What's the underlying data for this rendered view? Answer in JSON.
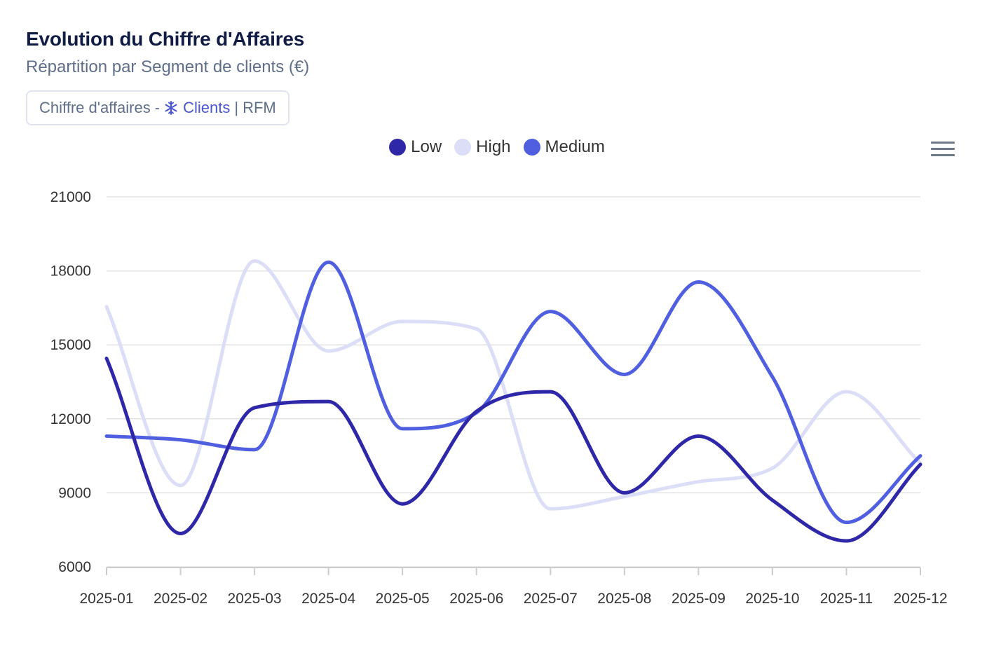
{
  "header": {
    "title": "Evolution du Chiffre d'Affaires",
    "subtitle": "Répartition par Segment de clients (€)"
  },
  "filter_chip": {
    "prefix": "Chiffre d'affaires -",
    "clients_label": "Clients",
    "separator": "|",
    "rfm_label": "RFM",
    "icon": "snowflake-icon"
  },
  "menu": {
    "icon": "hamburger-menu-icon"
  },
  "colors": {
    "title": "#111c44",
    "subtitle": "#5f6f8a",
    "accent": "#4b56d2",
    "grid": "#e3e3e3",
    "axis": "#cccccc"
  },
  "chart_data": {
    "type": "line",
    "title": "Evolution du Chiffre d'Affaires",
    "subtitle": "Répartition par Segment de clients (€)",
    "xlabel": "",
    "ylabel": "",
    "ylim": [
      6000,
      21000
    ],
    "yticks": [
      6000,
      9000,
      12000,
      15000,
      18000,
      21000
    ],
    "grid": true,
    "legend_position": "top-center",
    "categories": [
      "2025-01",
      "2025-02",
      "2025-03",
      "2025-04",
      "2025-05",
      "2025-06",
      "2025-07",
      "2025-08",
      "2025-09",
      "2025-10",
      "2025-11",
      "2025-12"
    ],
    "series": [
      {
        "name": "Low",
        "color": "#2e28a8",
        "values": [
          14450,
          7350,
          12450,
          12700,
          8550,
          12300,
          13100,
          9000,
          11300,
          8700,
          7050,
          10150
        ]
      },
      {
        "name": "High",
        "color": "#dcdef7",
        "values": [
          16550,
          9300,
          18400,
          14750,
          15950,
          15650,
          8350,
          8850,
          9450,
          10000,
          13100,
          10200
        ]
      },
      {
        "name": "Medium",
        "color": "#4f5fe0",
        "values": [
          11300,
          11150,
          10750,
          18350,
          11600,
          12250,
          16350,
          13800,
          17550,
          13700,
          7800,
          10500
        ]
      }
    ]
  }
}
